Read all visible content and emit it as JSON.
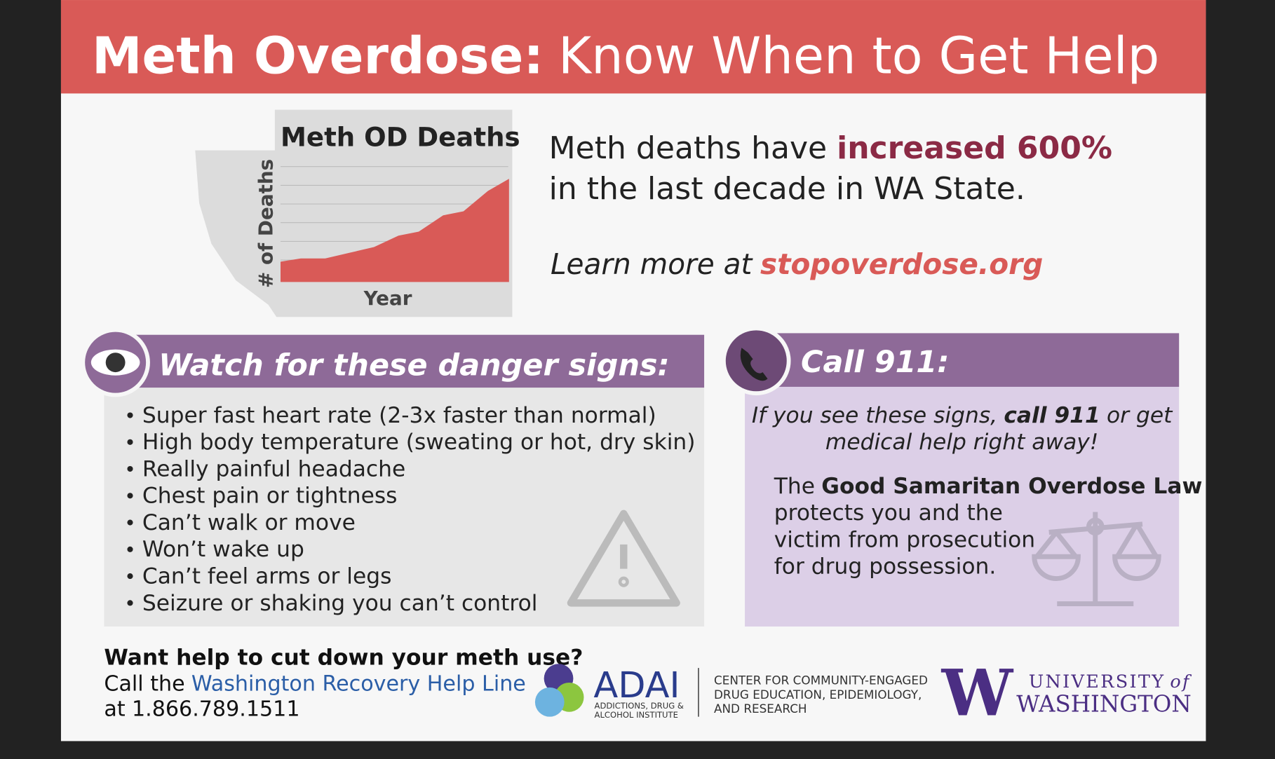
{
  "header": {
    "title_bold": "Meth Overdose:",
    "title_rest": "Know When to Get Help"
  },
  "chart": {
    "title": "Meth OD Deaths",
    "y_label": "# of Deaths",
    "x_label": "Year"
  },
  "stat": {
    "line1_start": "Meth deaths have",
    "line1_emph": "increased 600%",
    "line2": "in the last decade in WA State."
  },
  "learn": {
    "prefix": "Learn more at",
    "link": "stopoverdose.org"
  },
  "signs": {
    "title": "Watch for these danger signs:",
    "items": [
      "Super fast heart rate (2-3x faster than normal)",
      "High body temperature (sweating or hot, dry skin)",
      "Really painful headache",
      "Chest pain or tightness",
      "Can’t walk or move",
      "Won’t wake up",
      "Can’t feel arms or legs",
      "Seizure or shaking you can’t control"
    ]
  },
  "call": {
    "title": "Call 911:",
    "instruction": [
      "If you see these signs,",
      "call 911",
      "or get",
      "medical help right away!"
    ],
    "law": [
      "The",
      "Good Samaritan Overdose Law",
      "protects you and the",
      "victim from prosecution",
      "for drug possession."
    ]
  },
  "footer": {
    "question": "Want help to cut down your meth use?",
    "call_prefix": "Call the",
    "helpline": "Washington Recovery Help Line",
    "at": "at",
    "phone": "1.866.789.1511"
  },
  "logos": {
    "adai": "ADAI",
    "adai_sub": [
      "ADDICTIONS, DRUG &",
      "ALCOHOL INSTITUTE"
    ],
    "center": [
      "CENTER FOR COMMUNITY-ENGAGED",
      "DRUG EDUCATION, EPIDEMIOLOGY,",
      "AND RESEARCH"
    ],
    "uw_mark": "W",
    "uw_top": "UNIVERSITY",
    "uw_of": "of",
    "uw_name": "WASHINGTON"
  }
}
